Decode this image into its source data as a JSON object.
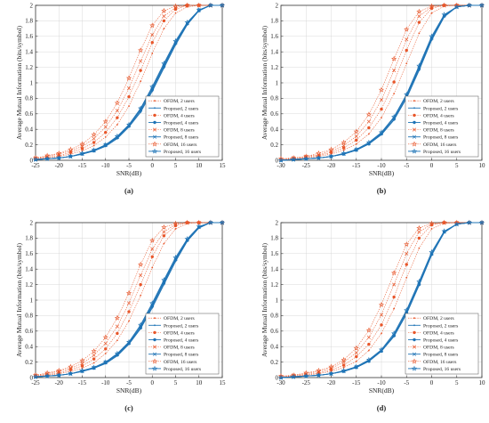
{
  "colors": {
    "ofdm": "#e8562a",
    "proposed": "#1f74b6",
    "grid": "#d8d8d8",
    "frame": "#333333"
  },
  "legend": [
    {
      "label": "OFDM, 2 users",
      "group": "ofdm",
      "marker": "dot"
    },
    {
      "label": "Proposed, 2 users",
      "group": "proposed",
      "marker": "dot"
    },
    {
      "label": "OFDM, 4 users",
      "group": "ofdm",
      "marker": "circle"
    },
    {
      "label": "Proposed, 4 users",
      "group": "proposed",
      "marker": "circle"
    },
    {
      "label": "OFDM, 8 users",
      "group": "ofdm",
      "marker": "x"
    },
    {
      "label": "Proposed, 8 users",
      "group": "proposed",
      "marker": "x"
    },
    {
      "label": "OFDM, 16 users",
      "group": "ofdm",
      "marker": "star"
    },
    {
      "label": "Proposed, 16 users",
      "group": "proposed",
      "marker": "star"
    }
  ],
  "chart_data": [
    {
      "panel": "(a)",
      "type": "line",
      "xlabel": "SNR(dB)",
      "ylabel": "Average Mutual Information (bits/symbol)",
      "xlim": [
        -25,
        15
      ],
      "ylim": [
        0,
        2
      ],
      "xticks": [
        -25,
        -20,
        -15,
        -10,
        -5,
        0,
        5,
        10,
        15
      ],
      "yticks": [
        0,
        0.2,
        0.4,
        0.6,
        0.8,
        1,
        1.2,
        1.4,
        1.6,
        1.8,
        2
      ],
      "grid": true,
      "legend_position": "bottom-right",
      "x": [
        -25,
        -22.5,
        -20,
        -17.5,
        -15,
        -12.5,
        -10,
        -7.5,
        -5,
        -2.5,
        0,
        2.5,
        5,
        7.5,
        10,
        12.5,
        15
      ],
      "series": [
        {
          "name": "OFDM, 2 users",
          "values": [
            0.02,
            0.03,
            0.05,
            0.08,
            0.12,
            0.19,
            0.3,
            0.46,
            0.7,
            1.02,
            1.38,
            1.7,
            1.9,
            1.98,
            2.0,
            2.0,
            2.0
          ]
        },
        {
          "name": "Proposed, 2 users",
          "values": [
            0.01,
            0.02,
            0.03,
            0.05,
            0.08,
            0.12,
            0.18,
            0.28,
            0.43,
            0.62,
            0.89,
            1.19,
            1.49,
            1.75,
            1.93,
            2.0,
            2.0
          ]
        },
        {
          "name": "OFDM, 4 users",
          "values": [
            0.02,
            0.04,
            0.06,
            0.1,
            0.15,
            0.23,
            0.36,
            0.55,
            0.82,
            1.16,
            1.52,
            1.8,
            1.95,
            2.0,
            2.0,
            2.0,
            2.0
          ]
        },
        {
          "name": "Proposed, 4 users",
          "values": [
            0.01,
            0.02,
            0.03,
            0.05,
            0.08,
            0.12,
            0.19,
            0.29,
            0.44,
            0.64,
            0.91,
            1.21,
            1.51,
            1.76,
            1.93,
            2.0,
            2.0
          ]
        },
        {
          "name": "OFDM, 8 users",
          "values": [
            0.03,
            0.05,
            0.08,
            0.12,
            0.18,
            0.28,
            0.43,
            0.64,
            0.93,
            1.28,
            1.62,
            1.86,
            1.97,
            2.0,
            2.0,
            2.0,
            2.0
          ]
        },
        {
          "name": "Proposed, 8 users",
          "values": [
            0.01,
            0.02,
            0.03,
            0.05,
            0.08,
            0.13,
            0.2,
            0.3,
            0.45,
            0.66,
            0.93,
            1.23,
            1.52,
            1.77,
            1.94,
            2.0,
            2.0
          ]
        },
        {
          "name": "OFDM, 16 users",
          "values": [
            0.03,
            0.06,
            0.09,
            0.14,
            0.21,
            0.33,
            0.5,
            0.74,
            1.06,
            1.42,
            1.74,
            1.93,
            1.99,
            2.0,
            2.0,
            2.0,
            2.0
          ]
        },
        {
          "name": "Proposed, 16 users",
          "values": [
            0.01,
            0.02,
            0.03,
            0.05,
            0.09,
            0.13,
            0.2,
            0.31,
            0.46,
            0.67,
            0.95,
            1.25,
            1.54,
            1.78,
            1.94,
            2.0,
            2.0
          ]
        }
      ]
    },
    {
      "panel": "(b)",
      "type": "line",
      "xlabel": "SNR(dB)",
      "ylabel": "Average Mutual Information (bits/symbol)",
      "xlim": [
        -30,
        10
      ],
      "ylim": [
        0,
        2
      ],
      "xticks": [
        -30,
        -25,
        -20,
        -15,
        -10,
        -5,
        0,
        5,
        10
      ],
      "yticks": [
        0,
        0.2,
        0.4,
        0.6,
        0.8,
        1,
        1.2,
        1.4,
        1.6,
        1.8,
        2
      ],
      "grid": true,
      "legend_position": "bottom-right",
      "x": [
        -30,
        -27.5,
        -25,
        -22.5,
        -20,
        -17.5,
        -15,
        -12.5,
        -10,
        -7.5,
        -5,
        -2.5,
        0,
        2.5,
        5,
        7.5,
        10
      ],
      "series": [
        {
          "name": "OFDM, 2 users",
          "values": [
            0.01,
            0.02,
            0.03,
            0.05,
            0.08,
            0.13,
            0.21,
            0.34,
            0.55,
            0.86,
            1.25,
            1.64,
            1.9,
            1.99,
            2.0,
            2.0,
            2.0
          ]
        },
        {
          "name": "Proposed, 2 users",
          "values": [
            0.0,
            0.01,
            0.02,
            0.03,
            0.05,
            0.08,
            0.13,
            0.21,
            0.33,
            0.52,
            0.8,
            1.16,
            1.55,
            1.85,
            1.98,
            2.0,
            2.0
          ]
        },
        {
          "name": "OFDM, 4 users",
          "values": [
            0.01,
            0.02,
            0.04,
            0.06,
            0.1,
            0.16,
            0.26,
            0.42,
            0.66,
            1.01,
            1.42,
            1.78,
            1.96,
            2.0,
            2.0,
            2.0,
            2.0
          ]
        },
        {
          "name": "Proposed, 4 users",
          "values": [
            0.0,
            0.01,
            0.02,
            0.03,
            0.05,
            0.08,
            0.13,
            0.21,
            0.34,
            0.53,
            0.82,
            1.18,
            1.57,
            1.86,
            1.98,
            2.0,
            2.0
          ]
        },
        {
          "name": "OFDM, 8 users",
          "values": [
            0.01,
            0.03,
            0.05,
            0.07,
            0.12,
            0.19,
            0.31,
            0.5,
            0.78,
            1.16,
            1.56,
            1.86,
            1.98,
            2.0,
            2.0,
            2.0,
            2.0
          ]
        },
        {
          "name": "Proposed, 8 users",
          "values": [
            0.0,
            0.01,
            0.02,
            0.03,
            0.05,
            0.08,
            0.14,
            0.22,
            0.35,
            0.55,
            0.84,
            1.2,
            1.58,
            1.87,
            1.98,
            2.0,
            2.0
          ]
        },
        {
          "name": "OFDM, 16 users",
          "values": [
            0.02,
            0.03,
            0.05,
            0.09,
            0.14,
            0.23,
            0.37,
            0.59,
            0.91,
            1.31,
            1.69,
            1.92,
            1.99,
            2.0,
            2.0,
            2.0,
            2.0
          ]
        },
        {
          "name": "Proposed, 16 users",
          "values": [
            0.0,
            0.01,
            0.02,
            0.03,
            0.05,
            0.09,
            0.14,
            0.23,
            0.36,
            0.56,
            0.85,
            1.22,
            1.6,
            1.88,
            1.98,
            2.0,
            2.0
          ]
        }
      ]
    },
    {
      "panel": "(c)",
      "type": "line",
      "xlabel": "SNR(dB)",
      "ylabel": "Average Mutual Information (bits/symbol)",
      "xlim": [
        -25,
        15
      ],
      "ylim": [
        0,
        2
      ],
      "xticks": [
        -25,
        -20,
        -15,
        -10,
        -5,
        0,
        5,
        10,
        15
      ],
      "yticks": [
        0,
        0.2,
        0.4,
        0.6,
        0.8,
        1,
        1.2,
        1.4,
        1.6,
        1.8,
        2
      ],
      "grid": true,
      "legend_position": "bottom-right",
      "x": [
        -25,
        -22.5,
        -20,
        -17.5,
        -15,
        -12.5,
        -10,
        -7.5,
        -5,
        -2.5,
        0,
        2.5,
        5,
        7.5,
        10,
        12.5,
        15
      ],
      "series": [
        {
          "name": "OFDM, 2 users",
          "values": [
            0.02,
            0.03,
            0.05,
            0.08,
            0.12,
            0.19,
            0.31,
            0.48,
            0.73,
            1.06,
            1.42,
            1.73,
            1.92,
            1.99,
            2.0,
            2.0,
            2.0
          ]
        },
        {
          "name": "Proposed, 2 users",
          "values": [
            0.01,
            0.02,
            0.03,
            0.05,
            0.08,
            0.12,
            0.18,
            0.28,
            0.43,
            0.63,
            0.9,
            1.2,
            1.5,
            1.76,
            1.93,
            2.0,
            2.0
          ]
        },
        {
          "name": "OFDM, 4 users",
          "values": [
            0.02,
            0.04,
            0.06,
            0.1,
            0.15,
            0.24,
            0.37,
            0.57,
            0.85,
            1.2,
            1.56,
            1.83,
            1.96,
            2.0,
            2.0,
            2.0,
            2.0
          ]
        },
        {
          "name": "Proposed, 4 users",
          "values": [
            0.01,
            0.02,
            0.03,
            0.05,
            0.08,
            0.12,
            0.19,
            0.29,
            0.44,
            0.64,
            0.92,
            1.22,
            1.52,
            1.77,
            1.94,
            2.0,
            2.0
          ]
        },
        {
          "name": "OFDM, 8 users",
          "values": [
            0.03,
            0.05,
            0.08,
            0.12,
            0.18,
            0.29,
            0.44,
            0.66,
            0.96,
            1.32,
            1.66,
            1.88,
            1.98,
            2.0,
            2.0,
            2.0,
            2.0
          ]
        },
        {
          "name": "Proposed, 8 users",
          "values": [
            0.01,
            0.02,
            0.03,
            0.05,
            0.08,
            0.13,
            0.2,
            0.3,
            0.45,
            0.66,
            0.94,
            1.24,
            1.53,
            1.78,
            1.94,
            2.0,
            2.0
          ]
        },
        {
          "name": "OFDM, 16 users",
          "values": [
            0.03,
            0.06,
            0.09,
            0.14,
            0.22,
            0.34,
            0.52,
            0.77,
            1.09,
            1.46,
            1.77,
            1.94,
            1.99,
            2.0,
            2.0,
            2.0,
            2.0
          ]
        },
        {
          "name": "Proposed, 16 users",
          "values": [
            0.01,
            0.02,
            0.03,
            0.05,
            0.09,
            0.13,
            0.2,
            0.31,
            0.46,
            0.68,
            0.96,
            1.26,
            1.55,
            1.79,
            1.95,
            2.0,
            2.0
          ]
        }
      ]
    },
    {
      "panel": "(d)",
      "type": "line",
      "xlabel": "SNR(dB)",
      "ylabel": "Average Mutual Information (bits/symbol)",
      "xlim": [
        -30,
        10
      ],
      "ylim": [
        0,
        2
      ],
      "xticks": [
        -30,
        -25,
        -20,
        -15,
        -10,
        -5,
        0,
        5,
        10
      ],
      "yticks": [
        0,
        0.2,
        0.4,
        0.6,
        0.8,
        1,
        1.2,
        1.4,
        1.6,
        1.8,
        2
      ],
      "grid": true,
      "legend_position": "bottom-right",
      "x": [
        -30,
        -27.5,
        -25,
        -22.5,
        -20,
        -17.5,
        -15,
        -12.5,
        -10,
        -7.5,
        -5,
        -2.5,
        0,
        2.5,
        5,
        7.5,
        10
      ],
      "series": [
        {
          "name": "OFDM, 2 users",
          "values": [
            0.01,
            0.02,
            0.03,
            0.05,
            0.08,
            0.13,
            0.21,
            0.35,
            0.57,
            0.89,
            1.29,
            1.67,
            1.92,
            1.99,
            2.0,
            2.0,
            2.0
          ]
        },
        {
          "name": "Proposed, 2 users",
          "values": [
            0.0,
            0.01,
            0.02,
            0.03,
            0.05,
            0.08,
            0.13,
            0.21,
            0.34,
            0.53,
            0.82,
            1.19,
            1.58,
            1.87,
            1.98,
            2.0,
            2.0
          ]
        },
        {
          "name": "OFDM, 4 users",
          "values": [
            0.01,
            0.02,
            0.04,
            0.06,
            0.1,
            0.16,
            0.27,
            0.43,
            0.68,
            1.04,
            1.46,
            1.8,
            1.97,
            2.0,
            2.0,
            2.0,
            2.0
          ]
        },
        {
          "name": "Proposed, 4 users",
          "values": [
            0.0,
            0.01,
            0.02,
            0.03,
            0.05,
            0.08,
            0.13,
            0.21,
            0.34,
            0.54,
            0.83,
            1.2,
            1.59,
            1.88,
            1.98,
            2.0,
            2.0
          ]
        },
        {
          "name": "OFDM, 8 users",
          "values": [
            0.01,
            0.03,
            0.05,
            0.08,
            0.12,
            0.2,
            0.32,
            0.52,
            0.81,
            1.2,
            1.6,
            1.88,
            1.98,
            2.0,
            2.0,
            2.0,
            2.0
          ]
        },
        {
          "name": "Proposed, 8 users",
          "values": [
            0.0,
            0.01,
            0.02,
            0.03,
            0.05,
            0.08,
            0.14,
            0.22,
            0.35,
            0.55,
            0.85,
            1.22,
            1.6,
            1.88,
            1.98,
            2.0,
            2.0
          ]
        },
        {
          "name": "OFDM, 16 users",
          "values": [
            0.02,
            0.03,
            0.06,
            0.09,
            0.14,
            0.23,
            0.38,
            0.61,
            0.94,
            1.35,
            1.72,
            1.93,
            1.99,
            2.0,
            2.0,
            2.0,
            2.0
          ]
        },
        {
          "name": "Proposed, 16 users",
          "values": [
            0.0,
            0.01,
            0.02,
            0.03,
            0.05,
            0.09,
            0.14,
            0.23,
            0.36,
            0.57,
            0.87,
            1.24,
            1.62,
            1.89,
            1.98,
            2.0,
            2.0
          ]
        }
      ]
    }
  ]
}
